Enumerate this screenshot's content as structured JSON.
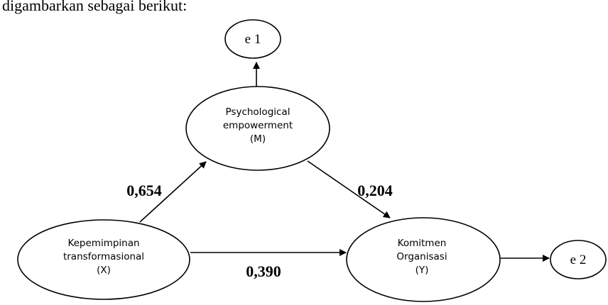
{
  "intro_text": "digambarkan sebagai berikut:",
  "nodes": {
    "e1": {
      "label": "e 1"
    },
    "mediator": {
      "line1": "Psychological",
      "line2": "empowerment",
      "line3": "(M)"
    },
    "independent": {
      "line1": "Kepemimpinan",
      "line2": "transformasional",
      "line3": "(X)"
    },
    "dependent": {
      "line1": "Komitmen",
      "line2": "Organisasi",
      "line3": "(Y)"
    },
    "e2": {
      "label": "e 2"
    }
  },
  "paths": {
    "x_to_m": "0,654",
    "m_to_y": "0,204",
    "x_to_y": "0,390"
  }
}
